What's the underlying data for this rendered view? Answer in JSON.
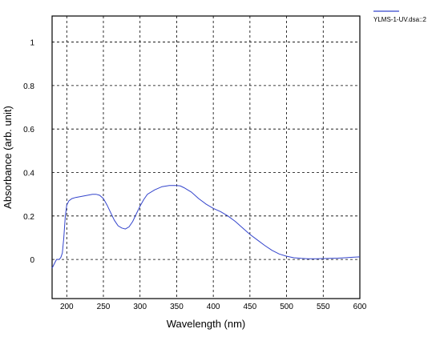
{
  "chart_data": {
    "type": "line",
    "xlabel": "Wavelength (nm)",
    "ylabel": "Absorbance (arb. unit)",
    "xlim": [
      180,
      600
    ],
    "ylim": [
      -0.18,
      1.12
    ],
    "grid": true,
    "legend_position": "top-right-outside",
    "x_ticks": [
      200,
      250,
      300,
      350,
      400,
      450,
      500,
      550,
      600
    ],
    "y_ticks": [
      0,
      0.2,
      0.4,
      0.6,
      0.8,
      1
    ],
    "x_tick_labels": [
      "200",
      "250",
      "300",
      "350",
      "400",
      "450",
      "500",
      "550",
      "600"
    ],
    "y_tick_labels": [
      "0",
      "0.2",
      "0.4",
      "0.6",
      "0.8",
      "1"
    ],
    "series": [
      {
        "name": "YLMS-1-UV.dsa::2",
        "color": "#3344cc",
        "x": [
          180,
          183,
          186,
          190,
          192,
          194,
          196,
          198,
          200,
          203,
          207,
          212,
          220,
          228,
          235,
          240,
          245,
          250,
          255,
          260,
          265,
          270,
          275,
          280,
          285,
          290,
          295,
          300,
          305,
          310,
          320,
          330,
          340,
          350,
          355,
          360,
          370,
          380,
          390,
          400,
          410,
          420,
          430,
          440,
          450,
          460,
          470,
          480,
          490,
          500,
          510,
          520,
          530,
          540,
          550,
          560,
          570,
          580,
          590,
          600
        ],
        "y": [
          -0.04,
          -0.02,
          0.0,
          0.0,
          0.01,
          0.03,
          0.1,
          0.2,
          0.25,
          0.27,
          0.28,
          0.285,
          0.29,
          0.295,
          0.3,
          0.3,
          0.295,
          0.28,
          0.25,
          0.215,
          0.18,
          0.155,
          0.145,
          0.14,
          0.15,
          0.175,
          0.21,
          0.245,
          0.275,
          0.3,
          0.32,
          0.335,
          0.34,
          0.34,
          0.338,
          0.33,
          0.31,
          0.28,
          0.255,
          0.235,
          0.22,
          0.2,
          0.175,
          0.145,
          0.115,
          0.09,
          0.065,
          0.042,
          0.025,
          0.015,
          0.008,
          0.005,
          0.003,
          0.003,
          0.004,
          0.005,
          0.006,
          0.008,
          0.01,
          0.012
        ]
      }
    ]
  }
}
